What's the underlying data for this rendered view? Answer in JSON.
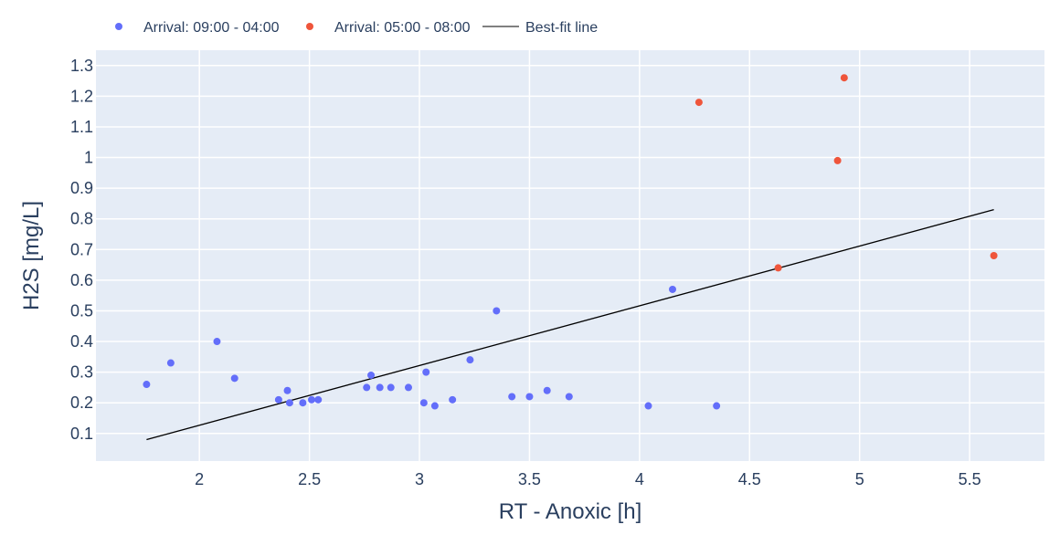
{
  "colors": {
    "plot_bg": "#E5ECF6",
    "grid": "#FFFFFF",
    "text": "#2a3f5f",
    "series_a": "#636EFA",
    "series_b": "#EF553B",
    "fit_line": "#000000"
  },
  "chart_data": {
    "type": "scatter",
    "xlabel": "RT - Anoxic [h]",
    "ylabel": "H2S [mg/L]",
    "xlim": [
      1.53,
      5.84
    ],
    "ylim": [
      0.01,
      1.35
    ],
    "xticks": [
      2,
      2.5,
      3,
      3.5,
      4,
      4.5,
      5,
      5.5
    ],
    "xtick_labels": [
      "2",
      "2.5",
      "3",
      "3.5",
      "4",
      "4.5",
      "5",
      "5.5"
    ],
    "yticks": [
      0.1,
      0.2,
      0.3,
      0.4,
      0.5,
      0.6,
      0.7,
      0.8,
      0.9,
      1.0,
      1.1,
      1.2,
      1.3
    ],
    "ytick_labels": [
      "0.1",
      "0.2",
      "0.3",
      "0.4",
      "0.5",
      "0.6",
      "0.7",
      "0.8",
      "0.9",
      "1",
      "1.1",
      "1.2",
      "1.3"
    ],
    "grid": true,
    "legend_position": "top-left horizontal",
    "series": [
      {
        "name": "Arrival: 09:00 - 04:00",
        "kind": "markers",
        "color": "#636EFA",
        "x": [
          1.76,
          1.87,
          2.08,
          2.16,
          2.36,
          2.4,
          2.41,
          2.47,
          2.51,
          2.54,
          2.76,
          2.78,
          2.82,
          2.87,
          2.95,
          3.02,
          3.03,
          3.07,
          3.15,
          3.23,
          3.35,
          3.42,
          3.5,
          3.58,
          3.68,
          4.04,
          4.15,
          4.35
        ],
        "y": [
          0.26,
          0.33,
          0.4,
          0.28,
          0.21,
          0.24,
          0.2,
          0.2,
          0.21,
          0.21,
          0.25,
          0.29,
          0.25,
          0.25,
          0.25,
          0.2,
          0.3,
          0.19,
          0.21,
          0.34,
          0.5,
          0.22,
          0.22,
          0.24,
          0.22,
          0.19,
          0.57,
          0.19
        ]
      },
      {
        "name": "Arrival: 05:00 - 08:00",
        "kind": "markers",
        "color": "#EF553B",
        "x": [
          4.27,
          4.63,
          4.9,
          4.93,
          5.61
        ],
        "y": [
          1.18,
          0.64,
          0.99,
          1.26,
          0.68
        ]
      },
      {
        "name": "Best-fit line",
        "kind": "line",
        "color": "#000000",
        "x": [
          1.76,
          5.61
        ],
        "y": [
          0.08,
          0.83
        ]
      }
    ]
  }
}
